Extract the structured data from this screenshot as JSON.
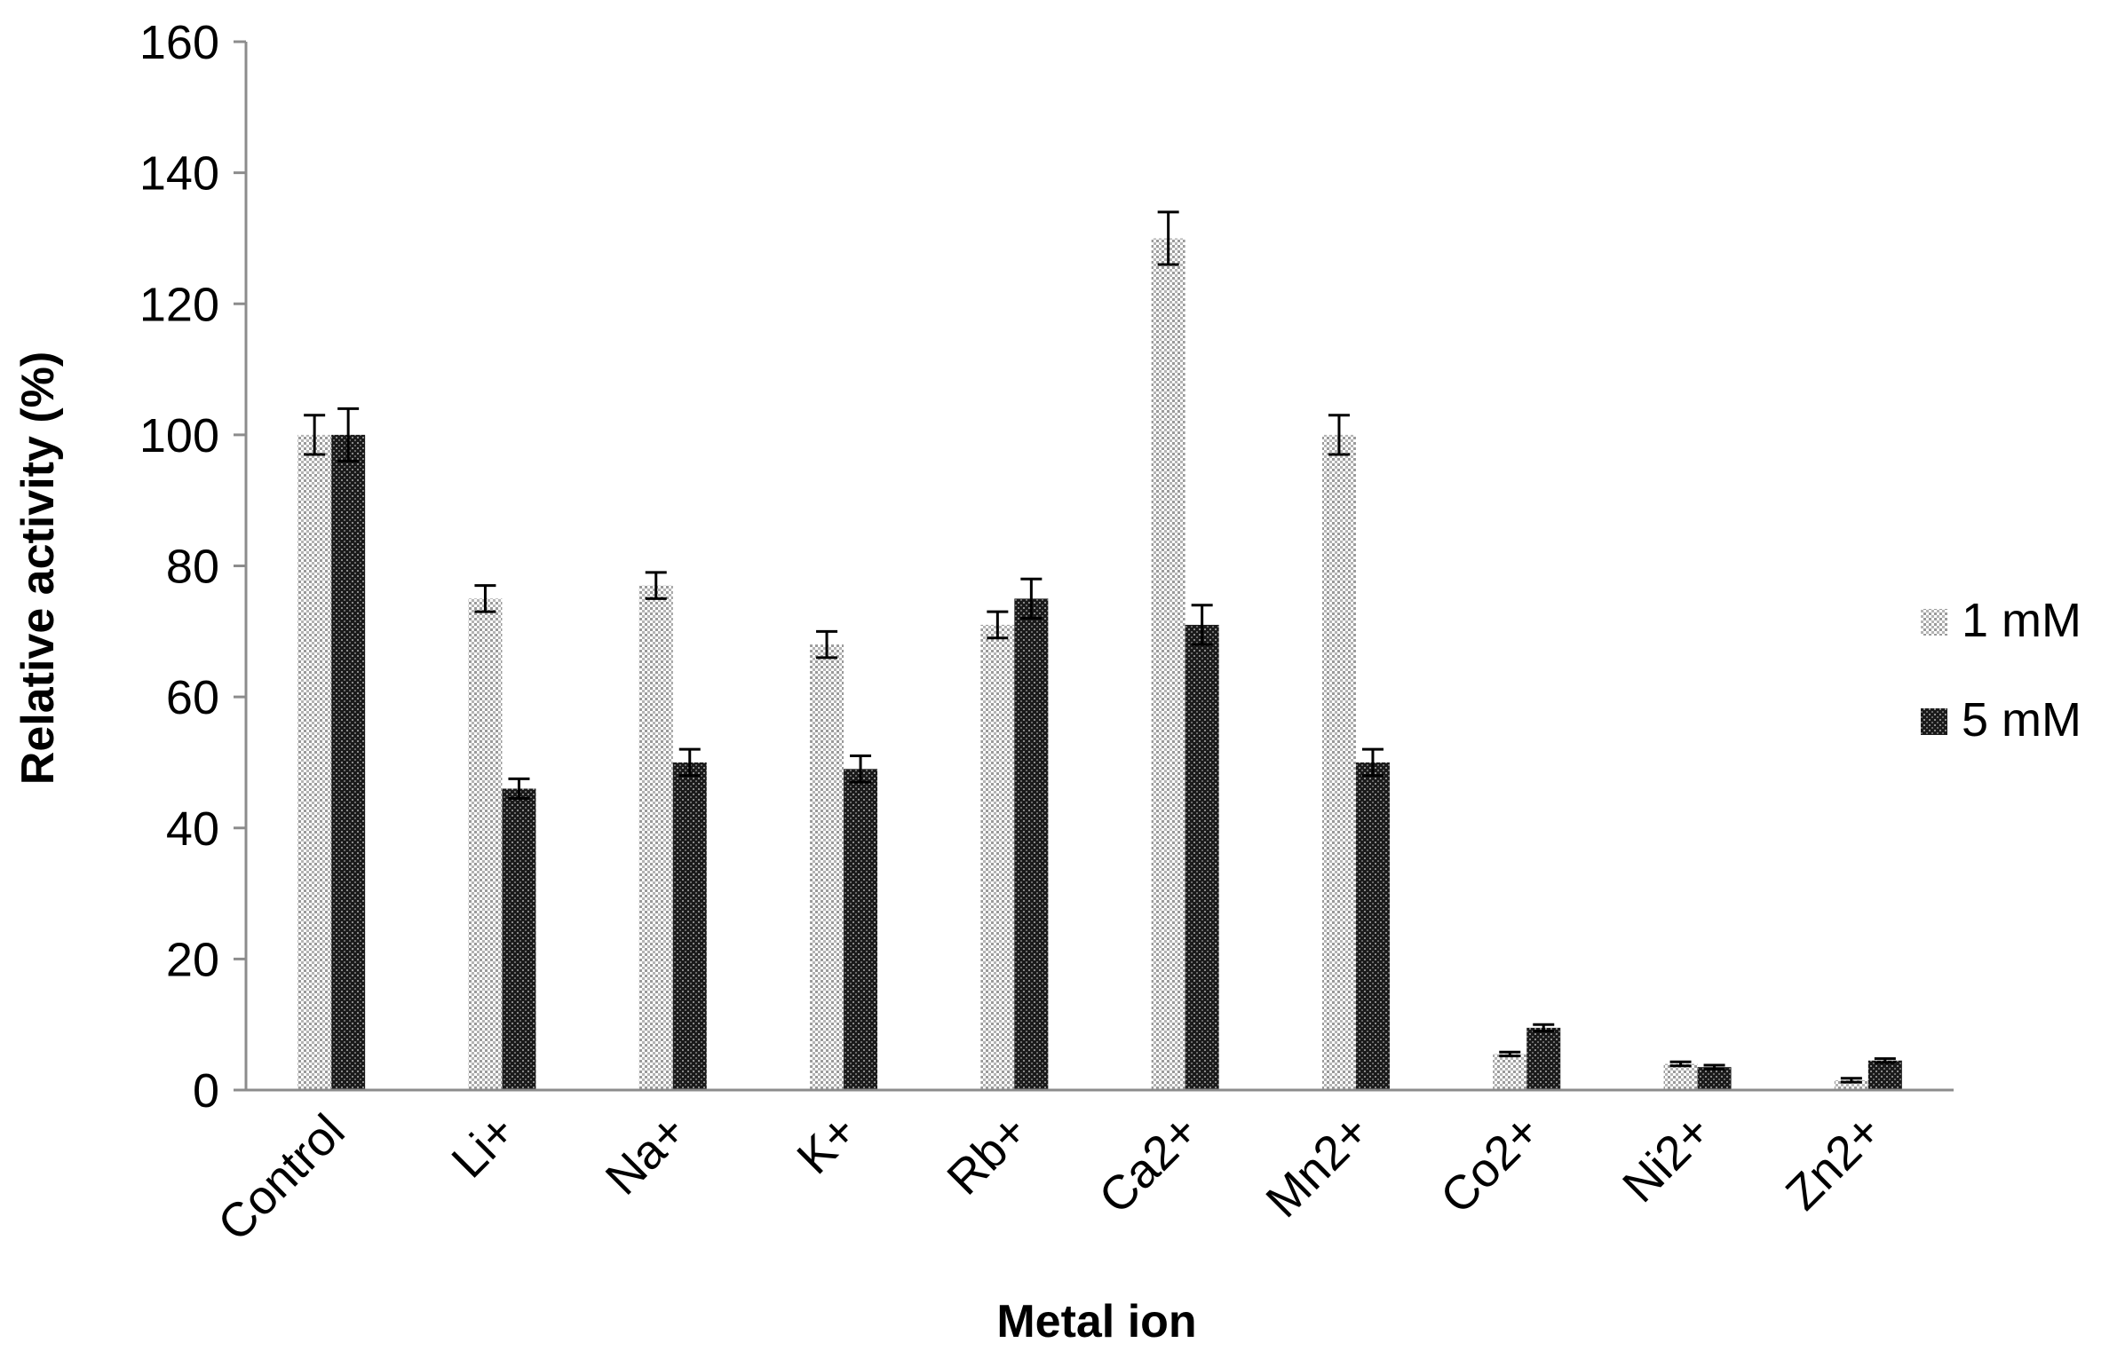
{
  "chart_data": {
    "type": "bar",
    "title": "",
    "xlabel": "Metal ion",
    "ylabel": "Relative activity (%)",
    "ylim": [
      0,
      160
    ],
    "yticks": [
      0,
      20,
      40,
      60,
      80,
      100,
      120,
      140,
      160
    ],
    "ytick_labels": [
      "0",
      "20",
      "40",
      "60",
      "80",
      "100",
      "120",
      "140",
      "160"
    ],
    "grid": false,
    "legend_position": "right",
    "categories": [
      "Control",
      "Li+",
      "Na+",
      "K+",
      "Rb+",
      "Ca2+",
      "Mn2+",
      "Co2+",
      "Ni2+",
      "Zn2+"
    ],
    "series": [
      {
        "name": "1 mM",
        "pattern": "light-dotted",
        "color": "#d9d9d9",
        "values": [
          100,
          75,
          77,
          68,
          71,
          130,
          100,
          5.5,
          4,
          1.5
        ],
        "errors": [
          3,
          2,
          2,
          2,
          2,
          4,
          3,
          0.3,
          0.3,
          0.3
        ]
      },
      {
        "name": "5 mM",
        "pattern": "dark-dotted",
        "color": "#262626",
        "values": [
          100,
          46,
          50,
          49,
          75,
          71,
          50,
          9.5,
          3.5,
          4.5
        ],
        "errors": [
          4,
          1.5,
          2,
          2,
          3,
          3,
          2,
          0.5,
          0.3,
          0.3
        ]
      }
    ]
  }
}
